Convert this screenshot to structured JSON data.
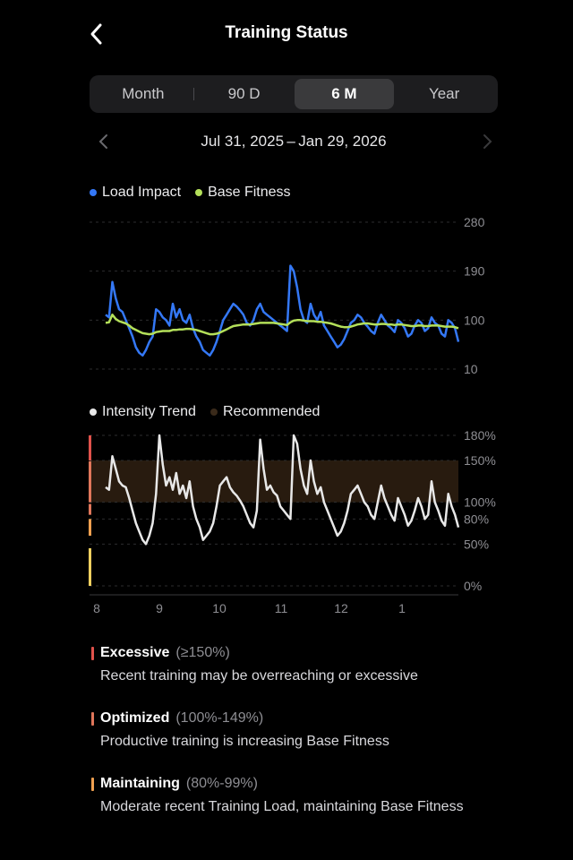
{
  "header": {
    "title": "Training Status",
    "back_icon": "chevron-left-icon"
  },
  "segments": [
    {
      "label": "Month",
      "active": false
    },
    {
      "label": "90 D",
      "active": false
    },
    {
      "label": "6 M",
      "active": true
    },
    {
      "label": "Year",
      "active": false
    }
  ],
  "date_range": {
    "label": "Jul 31, 2025 – Jan 29, 2026",
    "prev_icon": "chevron-left-icon",
    "next_icon": "chevron-right-icon"
  },
  "colors": {
    "load_impact": "#3478f6",
    "base_fitness": "#b4e05a",
    "intensity": "#e8e8e8",
    "recommended": "#3a2a1a",
    "excessive": "#e0524b",
    "optimized": "#e0765a",
    "maintaining": "#f0a050",
    "low": "#f0d060"
  },
  "chart_data": [
    {
      "type": "line",
      "legend": [
        "Load Impact",
        "Base Fitness"
      ],
      "y_ticks": [
        "280",
        "190",
        "100",
        "10"
      ],
      "ylim": [
        10,
        280
      ],
      "x_ticks": [
        "8",
        "9",
        "10",
        "11",
        "12",
        "1"
      ],
      "grid": true,
      "series": [
        {
          "name": "Load Impact",
          "values": [
            110,
            105,
            170,
            140,
            120,
            115,
            100,
            85,
            70,
            50,
            40,
            35,
            45,
            60,
            70,
            120,
            115,
            105,
            100,
            90,
            130,
            105,
            120,
            100,
            95,
            110,
            85,
            70,
            60,
            45,
            40,
            35,
            45,
            60,
            80,
            100,
            110,
            120,
            130,
            125,
            118,
            110,
            95,
            90,
            100,
            120,
            130,
            115,
            110,
            105,
            100,
            95,
            90,
            85,
            80,
            200,
            190,
            160,
            120,
            100,
            95,
            130,
            110,
            100,
            115,
            90,
            80,
            70,
            60,
            50,
            55,
            65,
            80,
            95,
            100,
            110,
            105,
            95,
            88,
            80,
            75,
            95,
            110,
            100,
            90,
            85,
            78,
            100,
            95,
            85,
            70,
            75,
            90,
            100,
            95,
            80,
            85,
            105,
            95,
            90,
            75,
            70,
            100,
            95,
            85,
            60
          ]
        },
        {
          "name": "Base Fitness",
          "values": [
            95,
            96,
            110,
            102,
            98,
            96,
            94,
            90,
            85,
            82,
            79,
            76,
            75,
            74,
            75,
            78,
            79,
            80,
            80,
            80,
            82,
            82,
            83,
            83,
            84,
            84,
            83,
            82,
            80,
            78,
            76,
            74,
            74,
            75,
            77,
            80,
            83,
            86,
            89,
            90,
            91,
            92,
            92,
            92,
            93,
            94,
            95,
            95,
            95,
            95,
            95,
            94,
            93,
            92,
            91,
            96,
            99,
            100,
            100,
            99,
            98,
            98,
            98,
            97,
            97,
            96,
            95,
            94,
            92,
            90,
            88,
            87,
            87,
            88,
            90,
            92,
            93,
            94,
            94,
            93,
            92,
            92,
            93,
            93,
            92,
            92,
            91,
            92,
            92,
            91,
            90,
            89,
            89,
            90,
            90,
            89,
            89,
            90,
            90,
            90,
            89,
            88,
            88,
            88,
            87,
            85
          ]
        }
      ]
    },
    {
      "type": "line",
      "legend": [
        "Intensity Trend",
        "Recommended"
      ],
      "y_ticks": [
        "180%",
        "150%",
        "100%",
        "80%",
        "50%",
        "0%"
      ],
      "y_tick_values": [
        180,
        150,
        100,
        80,
        50,
        0
      ],
      "x_ticks": [
        "8",
        "9",
        "10",
        "11",
        "12",
        "1"
      ],
      "recommended_band": [
        100,
        150
      ],
      "series": [
        {
          "name": "Intensity Trend",
          "values": [
            118,
            115,
            155,
            140,
            125,
            120,
            118,
            105,
            90,
            75,
            65,
            55,
            50,
            60,
            75,
            110,
            180,
            145,
            120,
            130,
            115,
            135,
            110,
            120,
            105,
            125,
            95,
            80,
            70,
            55,
            60,
            65,
            75,
            95,
            120,
            125,
            130,
            118,
            112,
            108,
            102,
            95,
            85,
            75,
            70,
            90,
            175,
            140,
            115,
            120,
            112,
            108,
            95,
            90,
            85,
            80,
            180,
            170,
            140,
            120,
            110,
            150,
            125,
            110,
            118,
            100,
            90,
            80,
            70,
            60,
            65,
            75,
            90,
            110,
            115,
            120,
            110,
            100,
            95,
            85,
            80,
            100,
            120,
            105,
            95,
            85,
            78,
            105,
            95,
            85,
            72,
            78,
            90,
            105,
            95,
            80,
            85,
            125,
            100,
            90,
            78,
            72,
            110,
            95,
            85,
            70
          ]
        }
      ]
    }
  ],
  "categories": [
    {
      "name": "Excessive",
      "range": "(≥150%)",
      "desc": "Recent training may be overreaching or excessive"
    },
    {
      "name": "Optimized",
      "range": "(100%-149%)",
      "desc": "Productive training is increasing Base Fitness"
    },
    {
      "name": "Maintaining",
      "range": "(80%-99%)",
      "desc": "Moderate recent Training Load, maintaining Base Fitness"
    }
  ]
}
